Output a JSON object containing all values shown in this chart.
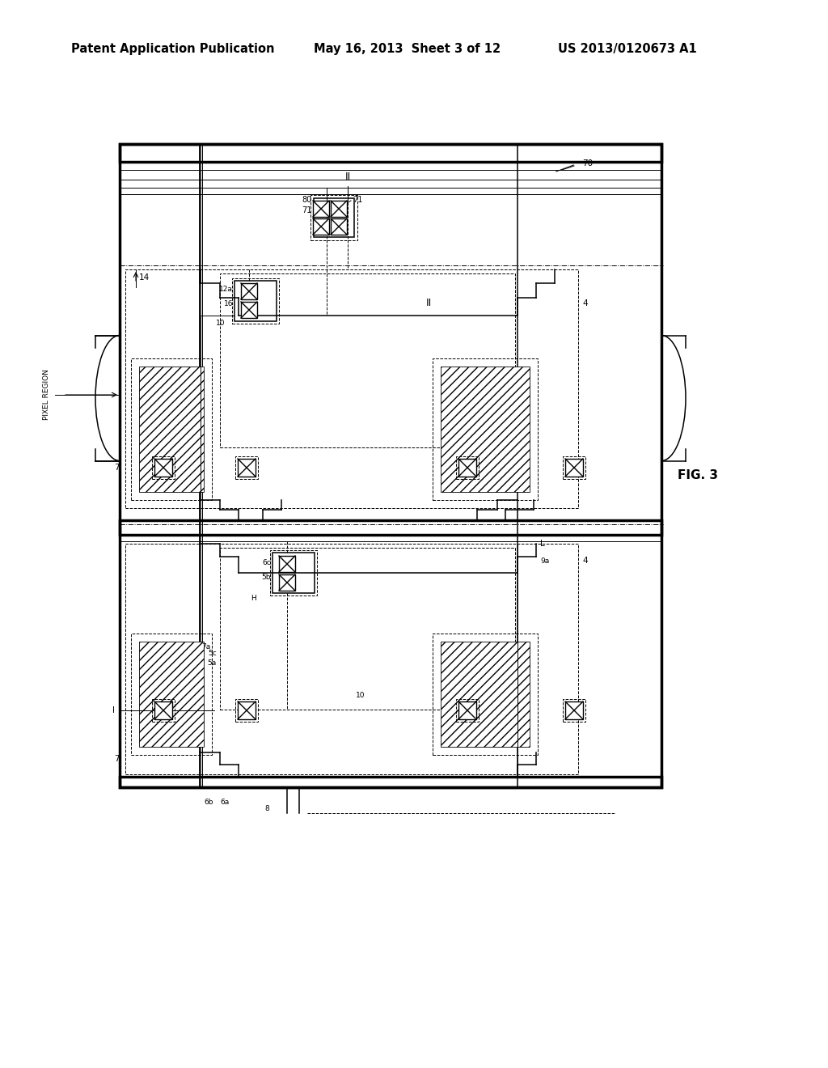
{
  "bg_color": "#ffffff",
  "header_text": "Patent Application Publication",
  "header_date": "May 16, 2013  Sheet 3 of 12",
  "header_patent": "US 2013/0120673 A1",
  "fig_label": "FIG. 3",
  "header_fontsize": 10.5
}
